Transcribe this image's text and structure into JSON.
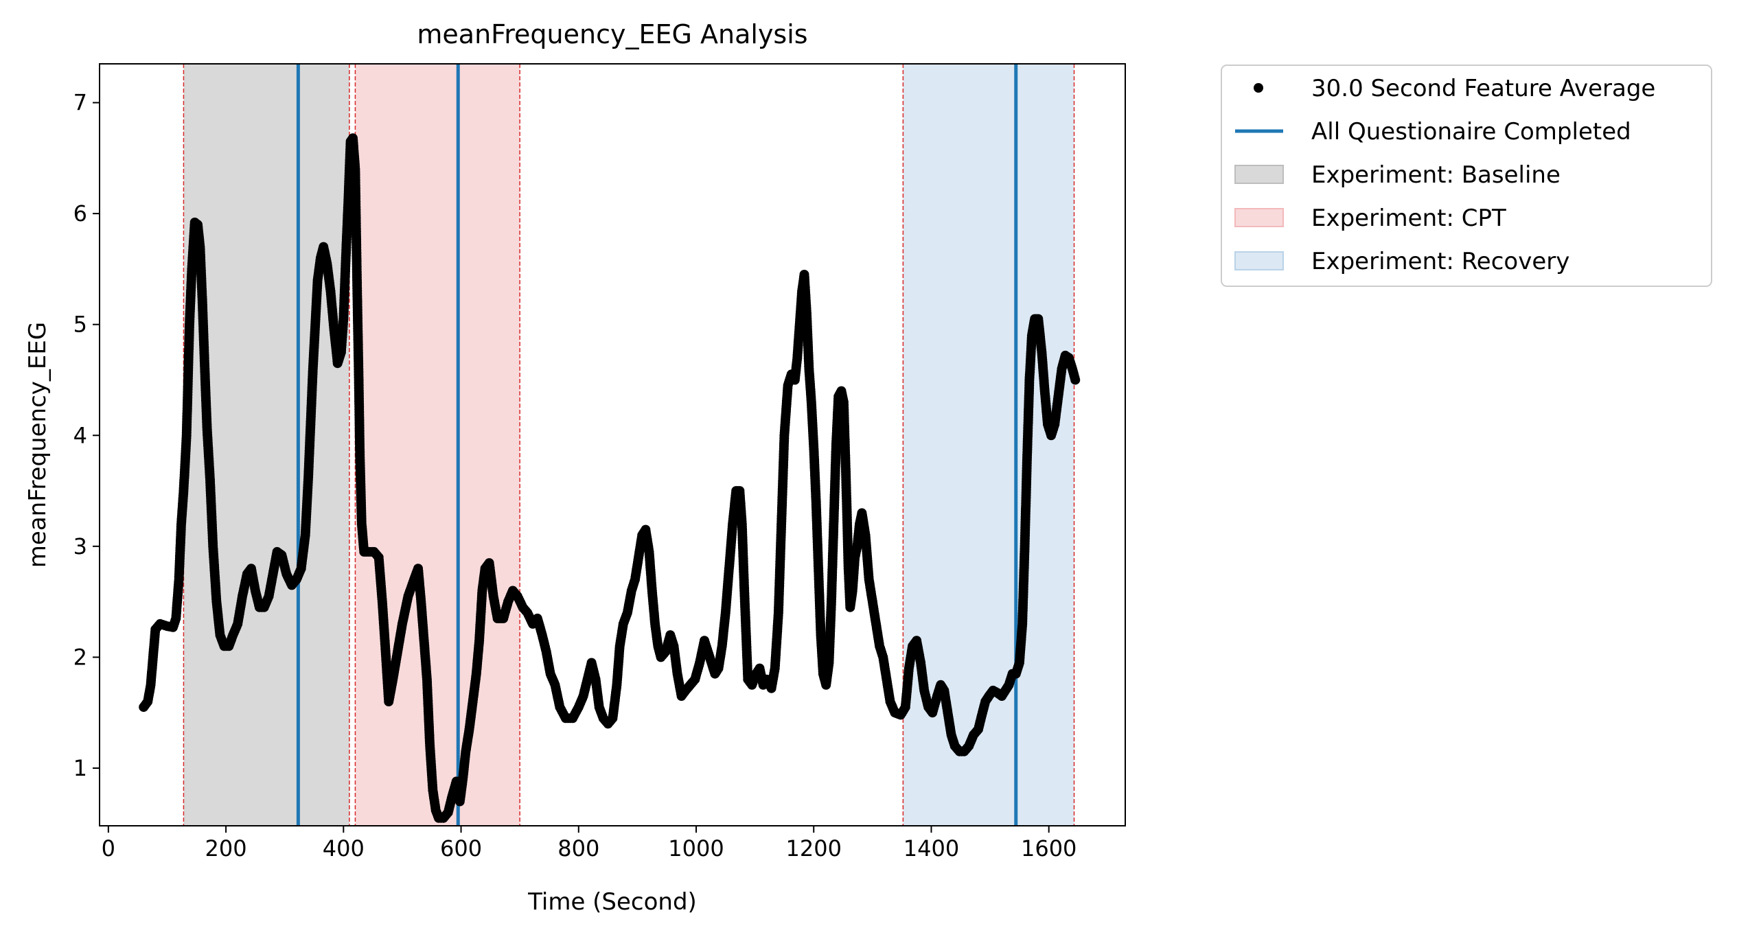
{
  "chart_data": {
    "type": "scatter",
    "title": "meanFrequency_EEG Analysis",
    "xlabel": "Time (Second)",
    "ylabel": "meanFrequency_EEG",
    "xlim": [
      -15,
      1730
    ],
    "ylim": [
      0.48,
      7.35
    ],
    "x_ticks": [
      0,
      200,
      400,
      600,
      800,
      1000,
      1200,
      1400,
      1600
    ],
    "y_ticks": [
      1,
      2,
      3,
      4,
      5,
      6,
      7
    ],
    "grid": false,
    "legend_position": "outside-upper-right",
    "legend": [
      {
        "label": "30.0 Second Feature Average",
        "kind": "marker",
        "color": "#000000"
      },
      {
        "label": "All Questionaire Completed",
        "kind": "line",
        "color": "#1f77b4"
      },
      {
        "label": "Experiment: Baseline",
        "kind": "patch",
        "color": "#d9d9d9",
        "edge": "#bdbdbd"
      },
      {
        "label": "Experiment: CPT",
        "kind": "patch",
        "color": "#f8dadb",
        "edge": "#f2b9bb"
      },
      {
        "label": "Experiment: Recovery",
        "kind": "patch",
        "color": "#dce8f3",
        "edge": "#b9d2e8"
      }
    ],
    "regions": [
      {
        "name": "Experiment: Baseline",
        "x_start": 128,
        "x_end": 410,
        "color": "#d9d9d9"
      },
      {
        "name": "Experiment: CPT",
        "x_start": 420,
        "x_end": 700,
        "color": "#f8dadb"
      },
      {
        "name": "Experiment: Recovery",
        "x_start": 1352,
        "x_end": 1643,
        "color": "#dce8f3"
      }
    ],
    "boundary_lines": [
      128,
      410,
      420,
      700,
      1352,
      1643
    ],
    "boundary_color": "#d62728",
    "questionnaire_lines": [
      323,
      595,
      1544
    ],
    "questionnaire_color": "#1f77b4",
    "series": [
      {
        "name": "30.0 Second Feature Average",
        "color": "#000000",
        "points": [
          [
            60,
            1.55
          ],
          [
            67,
            1.6
          ],
          [
            72,
            1.75
          ],
          [
            76,
            2.0
          ],
          [
            80,
            2.25
          ],
          [
            88,
            2.3
          ],
          [
            100,
            2.28
          ],
          [
            110,
            2.27
          ],
          [
            115,
            2.35
          ],
          [
            120,
            2.7
          ],
          [
            124,
            3.2
          ],
          [
            128,
            3.5
          ],
          [
            133,
            4.0
          ],
          [
            138,
            5.0
          ],
          [
            142,
            5.5
          ],
          [
            147,
            5.92
          ],
          [
            152,
            5.9
          ],
          [
            156,
            5.7
          ],
          [
            160,
            5.2
          ],
          [
            164,
            4.6
          ],
          [
            168,
            4.05
          ],
          [
            173,
            3.6
          ],
          [
            178,
            3.0
          ],
          [
            184,
            2.5
          ],
          [
            190,
            2.2
          ],
          [
            197,
            2.1
          ],
          [
            205,
            2.1
          ],
          [
            212,
            2.2
          ],
          [
            220,
            2.3
          ],
          [
            228,
            2.55
          ],
          [
            236,
            2.75
          ],
          [
            243,
            2.8
          ],
          [
            250,
            2.6
          ],
          [
            257,
            2.45
          ],
          [
            265,
            2.45
          ],
          [
            273,
            2.55
          ],
          [
            280,
            2.75
          ],
          [
            287,
            2.95
          ],
          [
            295,
            2.92
          ],
          [
            303,
            2.75
          ],
          [
            312,
            2.65
          ],
          [
            320,
            2.7
          ],
          [
            328,
            2.8
          ],
          [
            335,
            3.1
          ],
          [
            340,
            3.6
          ],
          [
            344,
            4.1
          ],
          [
            348,
            4.6
          ],
          [
            352,
            5.0
          ],
          [
            356,
            5.4
          ],
          [
            361,
            5.6
          ],
          [
            366,
            5.7
          ],
          [
            372,
            5.55
          ],
          [
            378,
            5.3
          ],
          [
            384,
            4.95
          ],
          [
            390,
            4.65
          ],
          [
            396,
            4.75
          ],
          [
            400,
            5.05
          ],
          [
            404,
            5.6
          ],
          [
            408,
            6.1
          ],
          [
            412,
            6.65
          ],
          [
            416,
            6.68
          ],
          [
            420,
            6.4
          ],
          [
            423,
            5.4
          ],
          [
            426,
            4.5
          ],
          [
            428,
            3.8
          ],
          [
            431,
            3.2
          ],
          [
            435,
            2.95
          ],
          [
            442,
            2.95
          ],
          [
            452,
            2.95
          ],
          [
            460,
            2.9
          ],
          [
            466,
            2.5
          ],
          [
            471,
            2.1
          ],
          [
            477,
            1.6
          ],
          [
            484,
            1.8
          ],
          [
            492,
            2.05
          ],
          [
            500,
            2.3
          ],
          [
            510,
            2.55
          ],
          [
            520,
            2.7
          ],
          [
            527,
            2.8
          ],
          [
            532,
            2.5
          ],
          [
            537,
            2.15
          ],
          [
            542,
            1.8
          ],
          [
            547,
            1.2
          ],
          [
            552,
            0.8
          ],
          [
            557,
            0.62
          ],
          [
            562,
            0.55
          ],
          [
            570,
            0.55
          ],
          [
            578,
            0.6
          ],
          [
            585,
            0.75
          ],
          [
            592,
            0.88
          ],
          [
            598,
            0.7
          ],
          [
            603,
            0.9
          ],
          [
            608,
            1.15
          ],
          [
            614,
            1.35
          ],
          [
            620,
            1.6
          ],
          [
            626,
            1.85
          ],
          [
            631,
            2.15
          ],
          [
            636,
            2.6
          ],
          [
            641,
            2.8
          ],
          [
            648,
            2.85
          ],
          [
            655,
            2.55
          ],
          [
            662,
            2.35
          ],
          [
            672,
            2.35
          ],
          [
            680,
            2.5
          ],
          [
            688,
            2.6
          ],
          [
            696,
            2.55
          ],
          [
            705,
            2.45
          ],
          [
            713,
            2.4
          ],
          [
            722,
            2.3
          ],
          [
            730,
            2.35
          ],
          [
            738,
            2.2
          ],
          [
            745,
            2.05
          ],
          [
            752,
            1.85
          ],
          [
            760,
            1.75
          ],
          [
            768,
            1.55
          ],
          [
            778,
            1.45
          ],
          [
            790,
            1.45
          ],
          [
            800,
            1.55
          ],
          [
            808,
            1.65
          ],
          [
            815,
            1.8
          ],
          [
            822,
            1.95
          ],
          [
            829,
            1.8
          ],
          [
            835,
            1.55
          ],
          [
            842,
            1.45
          ],
          [
            850,
            1.4
          ],
          [
            858,
            1.45
          ],
          [
            865,
            1.75
          ],
          [
            870,
            2.1
          ],
          [
            876,
            2.3
          ],
          [
            883,
            2.4
          ],
          [
            890,
            2.6
          ],
          [
            896,
            2.7
          ],
          [
            902,
            2.9
          ],
          [
            908,
            3.1
          ],
          [
            914,
            3.15
          ],
          [
            920,
            2.95
          ],
          [
            925,
            2.6
          ],
          [
            930,
            2.3
          ],
          [
            935,
            2.1
          ],
          [
            940,
            2.0
          ],
          [
            948,
            2.05
          ],
          [
            956,
            2.2
          ],
          [
            962,
            2.1
          ],
          [
            968,
            1.85
          ],
          [
            975,
            1.65
          ],
          [
            982,
            1.7
          ],
          [
            990,
            1.75
          ],
          [
            998,
            1.8
          ],
          [
            1006,
            1.95
          ],
          [
            1014,
            2.15
          ],
          [
            1020,
            2.05
          ],
          [
            1026,
            1.95
          ],
          [
            1032,
            1.85
          ],
          [
            1038,
            1.9
          ],
          [
            1044,
            2.1
          ],
          [
            1050,
            2.4
          ],
          [
            1056,
            2.8
          ],
          [
            1062,
            3.2
          ],
          [
            1068,
            3.5
          ],
          [
            1074,
            3.5
          ],
          [
            1078,
            3.2
          ],
          [
            1082,
            2.6
          ],
          [
            1088,
            1.8
          ],
          [
            1095,
            1.75
          ],
          [
            1102,
            1.85
          ],
          [
            1108,
            1.9
          ],
          [
            1114,
            1.75
          ],
          [
            1120,
            1.8
          ],
          [
            1128,
            1.72
          ],
          [
            1134,
            1.9
          ],
          [
            1140,
            2.4
          ],
          [
            1145,
            3.2
          ],
          [
            1150,
            4.0
          ],
          [
            1156,
            4.45
          ],
          [
            1162,
            4.55
          ],
          [
            1168,
            4.5
          ],
          [
            1172,
            4.7
          ],
          [
            1176,
            5.0
          ],
          [
            1180,
            5.3
          ],
          [
            1184,
            5.45
          ],
          [
            1188,
            5.1
          ],
          [
            1192,
            4.6
          ],
          [
            1196,
            4.3
          ],
          [
            1200,
            3.9
          ],
          [
            1204,
            3.4
          ],
          [
            1208,
            2.8
          ],
          [
            1212,
            2.2
          ],
          [
            1216,
            1.85
          ],
          [
            1221,
            1.75
          ],
          [
            1226,
            1.95
          ],
          [
            1230,
            2.5
          ],
          [
            1234,
            3.2
          ],
          [
            1238,
            3.9
          ],
          [
            1242,
            4.35
          ],
          [
            1247,
            4.4
          ],
          [
            1251,
            4.3
          ],
          [
            1255,
            3.6
          ],
          [
            1259,
            2.8
          ],
          [
            1262,
            2.45
          ],
          [
            1266,
            2.6
          ],
          [
            1270,
            2.9
          ],
          [
            1274,
            3.0
          ],
          [
            1278,
            3.2
          ],
          [
            1282,
            3.3
          ],
          [
            1288,
            3.1
          ],
          [
            1294,
            2.7
          ],
          [
            1300,
            2.5
          ],
          [
            1306,
            2.3
          ],
          [
            1312,
            2.1
          ],
          [
            1318,
            2.0
          ],
          [
            1324,
            1.8
          ],
          [
            1330,
            1.6
          ],
          [
            1338,
            1.5
          ],
          [
            1348,
            1.48
          ],
          [
            1356,
            1.55
          ],
          [
            1362,
            1.9
          ],
          [
            1368,
            2.1
          ],
          [
            1375,
            2.15
          ],
          [
            1382,
            1.95
          ],
          [
            1388,
            1.7
          ],
          [
            1395,
            1.55
          ],
          [
            1402,
            1.5
          ],
          [
            1410,
            1.65
          ],
          [
            1416,
            1.75
          ],
          [
            1422,
            1.7
          ],
          [
            1428,
            1.5
          ],
          [
            1434,
            1.3
          ],
          [
            1440,
            1.2
          ],
          [
            1448,
            1.15
          ],
          [
            1456,
            1.15
          ],
          [
            1464,
            1.2
          ],
          [
            1472,
            1.3
          ],
          [
            1480,
            1.35
          ],
          [
            1487,
            1.5
          ],
          [
            1492,
            1.6
          ],
          [
            1498,
            1.65
          ],
          [
            1505,
            1.7
          ],
          [
            1512,
            1.68
          ],
          [
            1520,
            1.65
          ],
          [
            1526,
            1.7
          ],
          [
            1532,
            1.75
          ],
          [
            1538,
            1.85
          ],
          [
            1544,
            1.85
          ],
          [
            1550,
            1.95
          ],
          [
            1555,
            2.3
          ],
          [
            1559,
            3.0
          ],
          [
            1563,
            3.8
          ],
          [
            1567,
            4.5
          ],
          [
            1571,
            4.9
          ],
          [
            1576,
            5.05
          ],
          [
            1582,
            5.05
          ],
          [
            1588,
            4.75
          ],
          [
            1593,
            4.4
          ],
          [
            1598,
            4.1
          ],
          [
            1604,
            4.0
          ],
          [
            1610,
            4.1
          ],
          [
            1616,
            4.35
          ],
          [
            1622,
            4.6
          ],
          [
            1628,
            4.72
          ],
          [
            1634,
            4.7
          ],
          [
            1640,
            4.6
          ],
          [
            1645,
            4.5
          ]
        ]
      }
    ]
  }
}
